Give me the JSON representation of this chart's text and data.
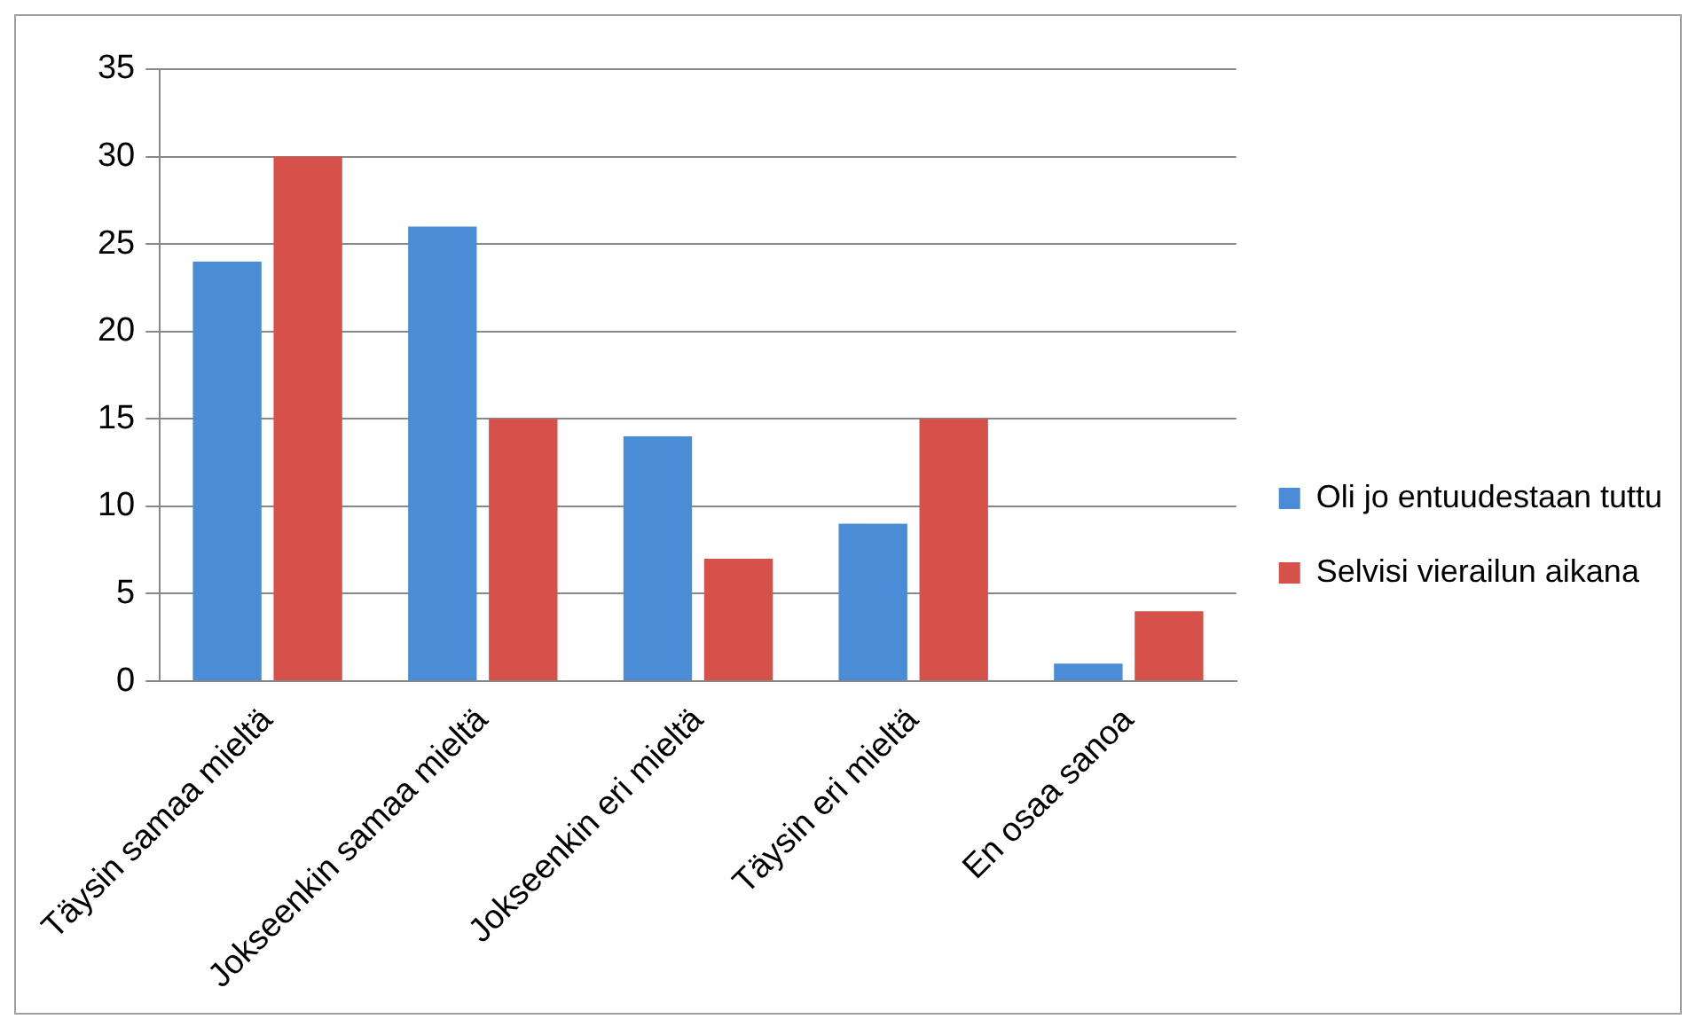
{
  "chart_data": {
    "type": "bar",
    "categories": [
      "Täysin samaa mieltä",
      "Jokseenkin samaa mieltä",
      "Jokseenkin eri mieltä",
      "Täysin eri mieltä",
      "En osaa sanoa"
    ],
    "series": [
      {
        "name": "Oli jo entuudestaan tuttu",
        "color": "#4a8cd6",
        "values": [
          24,
          26,
          14,
          9,
          1
        ]
      },
      {
        "name": "Selvisi vierailun aikana",
        "color": "#d6514a",
        "values": [
          30,
          15,
          7,
          15,
          4
        ]
      }
    ],
    "ylim": [
      0,
      35
    ],
    "yticks": [
      0,
      5,
      10,
      15,
      20,
      25,
      30,
      35
    ],
    "grid": "y",
    "legend": "right"
  }
}
